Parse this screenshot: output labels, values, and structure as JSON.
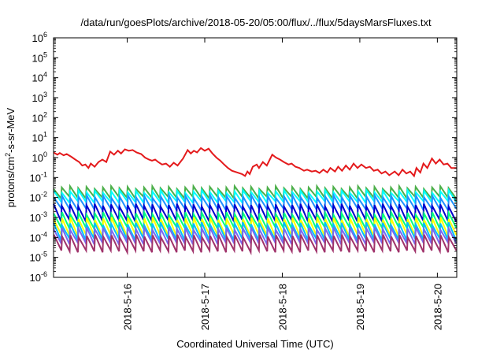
{
  "chart_data": {
    "type": "line",
    "title": "/data/run/goesPlots/archive/2018-05-20/05:00/flux/../flux/5daysMarsFluxes.txt",
    "xlabel": "Coordinated Universal Time (UTC)",
    "ylabel": {
      "base": "protons/cm",
      "sup": "2",
      "rest": "-s-sr-MeV"
    },
    "yscale": "log",
    "ylim_exp": [
      -6,
      6
    ],
    "y_tick_exponents": [
      -6,
      -5,
      -4,
      -3,
      -2,
      -1,
      0,
      1,
      2,
      3,
      4,
      5,
      6
    ],
    "y_tick_base": "10",
    "x_range_days": [
      15.05,
      20.25
    ],
    "x_tick_labels": [
      "2018-5-16",
      "2018-5-17",
      "2018-5-18",
      "2018-5-19",
      "2018-5-20"
    ],
    "x_tick_days": [
      16,
      17,
      18,
      19,
      20
    ],
    "grid": false,
    "legend": "none",
    "red_series": {
      "color": "#e41a1c",
      "points": [
        [
          15.05,
          1.8
        ],
        [
          15.1,
          1.4
        ],
        [
          15.13,
          1.7
        ],
        [
          15.18,
          1.3
        ],
        [
          15.22,
          1.5
        ],
        [
          15.28,
          1.1
        ],
        [
          15.33,
          0.8
        ],
        [
          15.38,
          0.6
        ],
        [
          15.42,
          0.4
        ],
        [
          15.46,
          0.45
        ],
        [
          15.5,
          0.3
        ],
        [
          15.53,
          0.5
        ],
        [
          15.58,
          0.35
        ],
        [
          15.63,
          0.6
        ],
        [
          15.68,
          0.8
        ],
        [
          15.73,
          0.6
        ],
        [
          15.78,
          2.0
        ],
        [
          15.83,
          1.4
        ],
        [
          15.88,
          2.2
        ],
        [
          15.92,
          1.6
        ],
        [
          15.97,
          2.6
        ],
        [
          16.02,
          2.2
        ],
        [
          16.07,
          2.4
        ],
        [
          16.12,
          1.8
        ],
        [
          16.18,
          1.5
        ],
        [
          16.23,
          1.0
        ],
        [
          16.28,
          0.8
        ],
        [
          16.32,
          0.7
        ],
        [
          16.36,
          0.8
        ],
        [
          16.4,
          0.6
        ],
        [
          16.45,
          0.45
        ],
        [
          16.5,
          0.5
        ],
        [
          16.55,
          0.35
        ],
        [
          16.6,
          0.55
        ],
        [
          16.65,
          0.4
        ],
        [
          16.72,
          0.9
        ],
        [
          16.78,
          2.4
        ],
        [
          16.82,
          1.6
        ],
        [
          16.86,
          2.2
        ],
        [
          16.9,
          1.8
        ],
        [
          16.95,
          3.0
        ],
        [
          17.0,
          2.2
        ],
        [
          17.05,
          2.8
        ],
        [
          17.1,
          1.6
        ],
        [
          17.15,
          1.0
        ],
        [
          17.2,
          0.7
        ],
        [
          17.25,
          0.45
        ],
        [
          17.3,
          0.3
        ],
        [
          17.35,
          0.22
        ],
        [
          17.42,
          0.18
        ],
        [
          17.48,
          0.15
        ],
        [
          17.52,
          0.12
        ],
        [
          17.55,
          0.2
        ],
        [
          17.58,
          0.15
        ],
        [
          17.62,
          0.35
        ],
        [
          17.67,
          0.45
        ],
        [
          17.7,
          0.3
        ],
        [
          17.75,
          0.6
        ],
        [
          17.8,
          0.4
        ],
        [
          17.87,
          1.4
        ],
        [
          17.92,
          1.0
        ],
        [
          17.97,
          0.8
        ],
        [
          18.02,
          0.6
        ],
        [
          18.08,
          0.45
        ],
        [
          18.12,
          0.5
        ],
        [
          18.17,
          0.35
        ],
        [
          18.22,
          0.3
        ],
        [
          18.28,
          0.22
        ],
        [
          18.32,
          0.25
        ],
        [
          18.38,
          0.2
        ],
        [
          18.43,
          0.22
        ],
        [
          18.48,
          0.17
        ],
        [
          18.53,
          0.25
        ],
        [
          18.58,
          0.18
        ],
        [
          18.62,
          0.3
        ],
        [
          18.68,
          0.2
        ],
        [
          18.72,
          0.35
        ],
        [
          18.77,
          0.22
        ],
        [
          18.82,
          0.4
        ],
        [
          18.87,
          0.25
        ],
        [
          18.92,
          0.5
        ],
        [
          18.97,
          0.3
        ],
        [
          19.02,
          0.45
        ],
        [
          19.08,
          0.3
        ],
        [
          19.13,
          0.35
        ],
        [
          19.18,
          0.22
        ],
        [
          19.23,
          0.25
        ],
        [
          19.28,
          0.16
        ],
        [
          19.33,
          0.2
        ],
        [
          19.38,
          0.13
        ],
        [
          19.45,
          0.2
        ],
        [
          19.5,
          0.13
        ],
        [
          19.55,
          0.25
        ],
        [
          19.6,
          0.16
        ],
        [
          19.65,
          0.2
        ],
        [
          19.7,
          0.12
        ],
        [
          19.73,
          0.3
        ],
        [
          19.78,
          0.18
        ],
        [
          19.82,
          0.5
        ],
        [
          19.87,
          0.3
        ],
        [
          19.93,
          0.9
        ],
        [
          19.98,
          0.5
        ],
        [
          20.03,
          0.8
        ],
        [
          20.08,
          0.45
        ],
        [
          20.13,
          0.5
        ],
        [
          20.18,
          0.3
        ],
        [
          20.25,
          0.3
        ]
      ]
    },
    "sawtooth_series": [
      {
        "color": "#4daf4a",
        "low": 0.01,
        "high": 0.032
      },
      {
        "color": "#00ffff",
        "low": 0.006,
        "high": 0.02
      },
      {
        "color": "#1e90ff",
        "low": 0.0025,
        "high": 0.011
      },
      {
        "color": "#0000cd",
        "low": 0.0007,
        "high": 0.0042
      },
      {
        "color": "#00ff7f",
        "low": 0.0003,
        "high": 0.0016
      },
      {
        "color": "#ffff00",
        "low": 0.00012,
        "high": 0.0009
      },
      {
        "color": "#00bfff",
        "low": 8e-05,
        "high": 0.0005
      },
      {
        "color": "#7b68ee",
        "low": 5e-05,
        "high": 0.00028
      },
      {
        "color": "#a0336b",
        "low": 2e-05,
        "high": 0.00012
      }
    ],
    "sawtooth_cycles": 49
  }
}
